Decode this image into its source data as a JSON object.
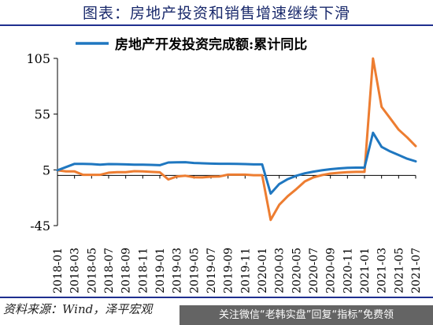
{
  "figure": {
    "title": "图表：房地产投资和销售增速继续下滑",
    "source": "资料来源：Wind，泽平宏观",
    "watermark": "关注微信“老韩实盘”回复“指标”免费领"
  },
  "colors": {
    "investment": "#1f77c0",
    "sales": "#ed7d31",
    "axis": "#000000",
    "title": "#1a2a6c",
    "rule": "#1f2f8f"
  },
  "chart_data": {
    "type": "line",
    "legend_position": "top",
    "grid": false,
    "ylim": [
      -45,
      105
    ],
    "yticks": [
      -45,
      5,
      55,
      105
    ],
    "xtick_labels": [
      "2018-01",
      "2018-03",
      "2018-05",
      "2018-07",
      "2018-09",
      "2018-11",
      "2019-01",
      "2019-03",
      "2019-05",
      "2019-07",
      "2019-09",
      "2019-11",
      "2020-01",
      "2020-03",
      "2020-05",
      "2020-07",
      "2020-09",
      "2020-11",
      "2021-01",
      "2021-03",
      "2021-05",
      "2021-07"
    ],
    "x": [
      "2018-01",
      "2018-02",
      "2018-03",
      "2018-04",
      "2018-05",
      "2018-06",
      "2018-07",
      "2018-08",
      "2018-09",
      "2018-10",
      "2018-11",
      "2018-12",
      "2019-01",
      "2019-02",
      "2019-03",
      "2019-04",
      "2019-05",
      "2019-06",
      "2019-07",
      "2019-08",
      "2019-09",
      "2019-10",
      "2019-11",
      "2019-12",
      "2020-01",
      "2020-02",
      "2020-03",
      "2020-04",
      "2020-05",
      "2020-06",
      "2020-07",
      "2020-08",
      "2020-09",
      "2020-10",
      "2020-11",
      "2020-12",
      "2021-01",
      "2021-02",
      "2021-03",
      "2021-04",
      "2021-05",
      "2021-06",
      "2021-07"
    ],
    "series": [
      {
        "name": "房地产开发投资完成额:累计同比",
        "color": "#1f77c0",
        "values": [
          4.6,
          7.5,
          10.4,
          10.3,
          10.2,
          9.7,
          10.2,
          10.1,
          9.9,
          9.7,
          9.7,
          9.5,
          9.2,
          11.6,
          11.8,
          11.9,
          11.2,
          10.9,
          10.6,
          10.5,
          10.5,
          10.3,
          10.2,
          9.9,
          9.9,
          -16.3,
          -7.7,
          -3.3,
          -0.3,
          1.9,
          3.4,
          4.6,
          5.6,
          6.3,
          6.8,
          7.0,
          7.0,
          38.3,
          25.6,
          21.6,
          18.3,
          15.0,
          12.7
        ]
      },
      {
        "values": [
          4.6,
          3.6,
          3.6,
          0.6,
          0.6,
          0.6,
          2.5,
          3.0,
          3.0,
          3.8,
          3.6,
          3.2,
          2.8,
          -3.6,
          -0.9,
          -0.3,
          -1.6,
          -1.8,
          -1.1,
          -0.9,
          0.7,
          0.7,
          0.7,
          0.2,
          0.2,
          -39.9,
          -26.3,
          -18.6,
          -12.3,
          -5.4,
          -1.8,
          0.3,
          1.7,
          2.4,
          3.0,
          3.2,
          3.2,
          104.9,
          61.5,
          51.4,
          41.1,
          34.1,
          26.3
        ]
      }
    ]
  }
}
